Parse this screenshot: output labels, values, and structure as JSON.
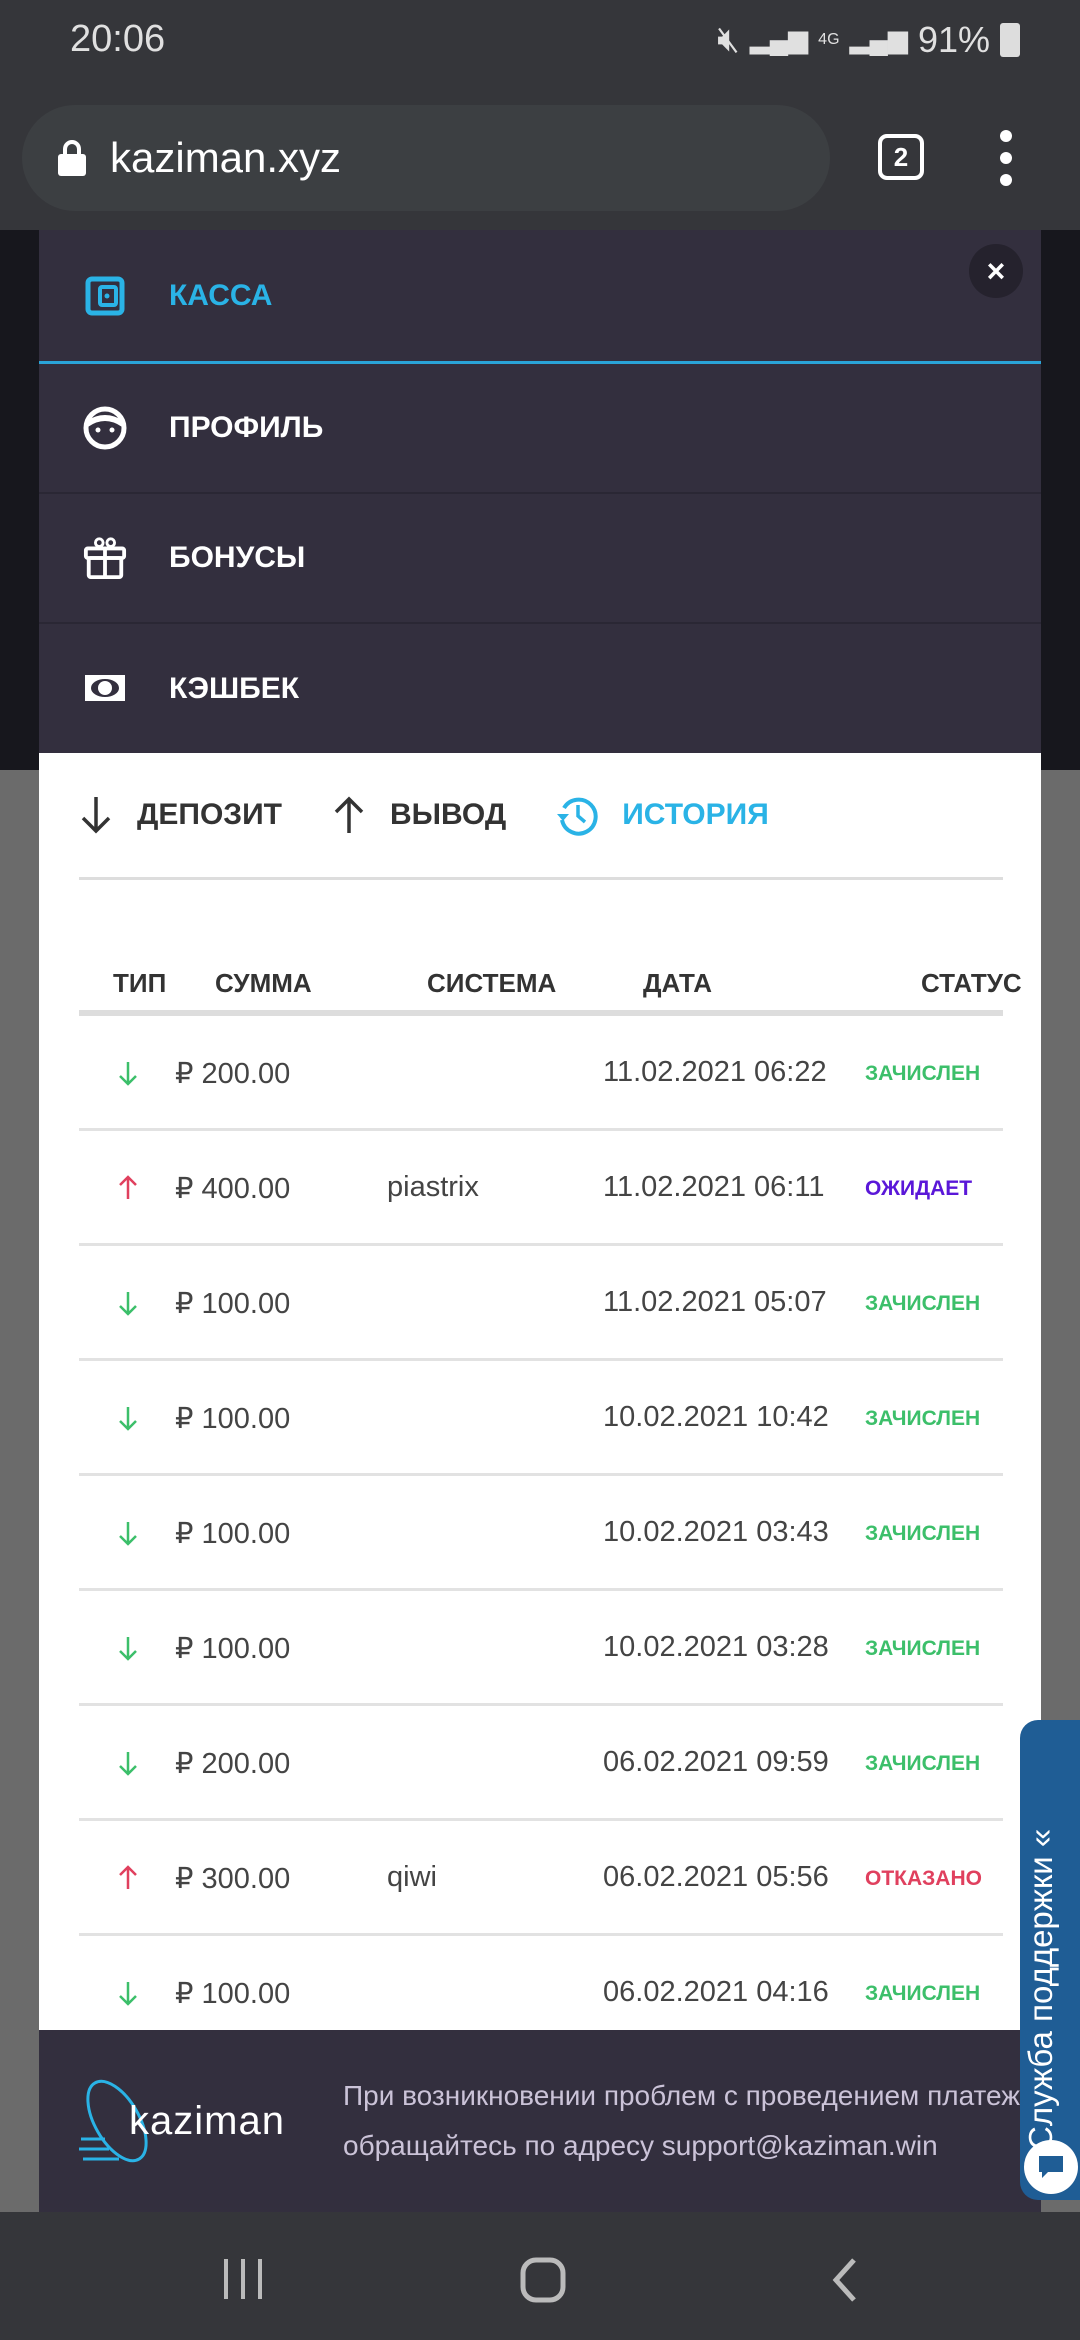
{
  "status_bar": {
    "time": "20:06",
    "network": "4G",
    "battery": "91%"
  },
  "browser": {
    "url": "kaziman.xyz",
    "tab_count": "2"
  },
  "menu": {
    "items": [
      {
        "label": "КАССА",
        "icon": "wallet-icon",
        "active": true
      },
      {
        "label": "ПРОФИЛЬ",
        "icon": "face-icon"
      },
      {
        "label": "БОНУСЫ",
        "icon": "gift-icon"
      },
      {
        "label": "КЭШБЕК",
        "icon": "money-icon"
      }
    ],
    "close": "×"
  },
  "tabs": [
    {
      "label": "ДЕПОЗИТ",
      "icon": "arrow-down-icon"
    },
    {
      "label": "ВЫВОД",
      "icon": "arrow-up-icon"
    },
    {
      "label": "ИСТОРИЯ",
      "icon": "history-icon",
      "active": true
    }
  ],
  "table": {
    "headers": [
      "ТИП",
      "СУММА",
      "СИСТЕМА",
      "ДАТА",
      "СТАТУС"
    ],
    "currency": "₽",
    "rows": [
      {
        "type": "deposit",
        "amount": "200.00",
        "system": "",
        "date": "11.02.2021 06:22",
        "status": "ЗАЧИСЛЕН",
        "status_color": "#3cbf6a"
      },
      {
        "type": "withdraw",
        "amount": "400.00",
        "system": "piastrix",
        "date": "11.02.2021 06:11",
        "status": "ОЖИДАЕТ",
        "status_color": "#5a17d8"
      },
      {
        "type": "deposit",
        "amount": "100.00",
        "system": "",
        "date": "11.02.2021 05:07",
        "status": "ЗАЧИСЛЕН",
        "status_color": "#3cbf6a"
      },
      {
        "type": "deposit",
        "amount": "100.00",
        "system": "",
        "date": "10.02.2021 10:42",
        "status": "ЗАЧИСЛЕН",
        "status_color": "#3cbf6a"
      },
      {
        "type": "deposit",
        "amount": "100.00",
        "system": "",
        "date": "10.02.2021 03:43",
        "status": "ЗАЧИСЛЕН",
        "status_color": "#3cbf6a"
      },
      {
        "type": "deposit",
        "amount": "100.00",
        "system": "",
        "date": "10.02.2021 03:28",
        "status": "ЗАЧИСЛЕН",
        "status_color": "#3cbf6a"
      },
      {
        "type": "deposit",
        "amount": "200.00",
        "system": "",
        "date": "06.02.2021 09:59",
        "status": "ЗАЧИСЛЕН",
        "status_color": "#3cbf6a"
      },
      {
        "type": "withdraw",
        "amount": "300.00",
        "system": "qiwi",
        "date": "06.02.2021 05:56",
        "status": "ОТКАЗАНО",
        "status_color": "#e0405e"
      },
      {
        "type": "deposit",
        "amount": "100.00",
        "system": "",
        "date": "06.02.2021 04:16",
        "status": "ЗАЧИСЛЕН",
        "status_color": "#3cbf6a"
      }
    ]
  },
  "footer": {
    "logo": "kaziman",
    "line1": "При возникновении проблем с проведением платежа",
    "line2": "обращайтесь по адресу support@kaziman.win"
  },
  "support": {
    "label": "Служба поддержки «"
  },
  "colors": {
    "accent": "#2ab3e6",
    "panel": "#332f3e",
    "deposit": "#3cbf6a",
    "withdraw": "#e0405e"
  }
}
